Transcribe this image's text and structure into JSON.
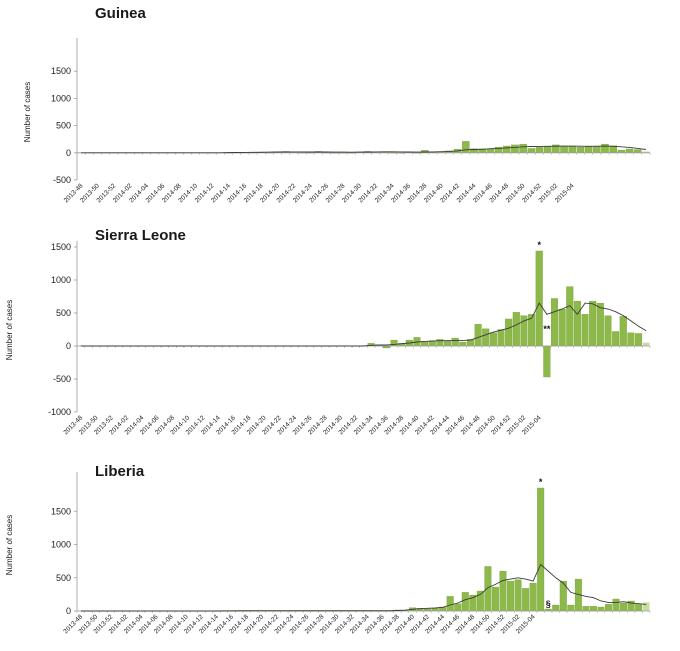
{
  "colors": {
    "bar": "#8db84a",
    "bar_stroke": "#6f9a30",
    "last_bar": "#c9dc9f",
    "trend": "#3a3a3a",
    "axis": "#9a9a9a"
  },
  "chart_data": [
    {
      "type": "bar",
      "title": "Guinea",
      "ylabel": "Number of cases",
      "ylim": [
        -500,
        2000
      ],
      "yticks": [
        -500,
        0,
        500,
        1000,
        1500
      ],
      "xtick_labels": [
        "2013-48",
        "2013-50",
        "2013-52",
        "2014-02",
        "2014-04",
        "2014-06",
        "2014-08",
        "2014-10",
        "2014-12",
        "2014-14",
        "2014-16",
        "2014-18",
        "2014-20",
        "2014-22",
        "2014-24",
        "2014-26",
        "2014-28",
        "2014-30",
        "2014-32",
        "2014-34",
        "2014-36",
        "2014-38",
        "2014-40",
        "2014-42",
        "2014-44",
        "2014-46",
        "2014-48",
        "2014-50",
        "2014-52",
        "2015-02",
        "2015-04"
      ],
      "values": [
        0,
        0,
        0,
        0,
        0,
        0,
        0,
        0,
        0,
        0,
        0,
        0,
        0,
        0,
        0,
        0,
        0,
        0,
        5,
        10,
        10,
        10,
        15,
        10,
        20,
        25,
        15,
        10,
        10,
        25,
        10,
        5,
        5,
        5,
        15,
        25,
        20,
        15,
        10,
        5,
        0,
        5,
        45,
        15,
        20,
        35,
        65,
        210,
        75,
        75,
        75,
        105,
        125,
        145,
        160,
        80,
        100,
        110,
        145,
        125,
        115,
        105,
        115,
        110,
        160,
        130,
        50,
        70,
        60,
        25
      ],
      "trend": [
        0,
        0,
        0,
        0,
        0,
        0,
        0,
        0,
        0,
        0,
        0,
        0,
        0,
        0,
        0,
        0,
        0,
        0,
        3,
        5,
        8,
        10,
        10,
        12,
        14,
        16,
        17,
        16,
        14,
        14,
        14,
        13,
        12,
        11,
        12,
        15,
        17,
        18,
        18,
        16,
        14,
        12,
        14,
        17,
        20,
        25,
        35,
        55,
        60,
        65,
        75,
        80,
        90,
        100,
        110,
        115,
        118,
        120,
        122,
        124,
        124,
        122,
        120,
        121,
        123,
        120,
        110,
        100,
        80,
        60
      ],
      "annotations": []
    },
    {
      "type": "bar",
      "title": "Sierra Leone",
      "ylabel": "Number of cases",
      "ylim": [
        -1000,
        1500
      ],
      "yticks": [
        -1000,
        -500,
        0,
        500,
        1000,
        1500
      ],
      "xtick_labels": [
        "2013-48",
        "2013-50",
        "2013-52",
        "2014-02",
        "2014-04",
        "2014-06",
        "2014-08",
        "2014-10",
        "2014-12",
        "2014-14",
        "2014-16",
        "2014-18",
        "2014-20",
        "2014-22",
        "2014-24",
        "2014-26",
        "2014-28",
        "2014-30",
        "2014-32",
        "2014-34",
        "2014-36",
        "2014-38",
        "2014-40",
        "2014-42",
        "2014-44",
        "2014-46",
        "2014-48",
        "2014-50",
        "2014-52",
        "2015-02",
        "2015-04"
      ],
      "values": [
        0,
        0,
        0,
        0,
        0,
        0,
        0,
        0,
        0,
        0,
        0,
        0,
        0,
        0,
        0,
        0,
        0,
        0,
        0,
        0,
        0,
        0,
        0,
        0,
        0,
        0,
        0,
        0,
        0,
        0,
        0,
        0,
        0,
        0,
        0,
        0,
        0,
        0,
        40,
        20,
        -30,
        90,
        40,
        90,
        130,
        60,
        80,
        100,
        80,
        120,
        60,
        100,
        330,
        260,
        200,
        250,
        410,
        510,
        460,
        480,
        1440,
        -470,
        720,
        560,
        900,
        680,
        480,
        680,
        650,
        460,
        220,
        450,
        200,
        190,
        50
      ],
      "trend": [
        0,
        0,
        0,
        0,
        0,
        0,
        0,
        0,
        0,
        0,
        0,
        0,
        0,
        0,
        0,
        0,
        0,
        0,
        0,
        0,
        0,
        0,
        0,
        0,
        0,
        0,
        0,
        0,
        0,
        0,
        0,
        0,
        0,
        0,
        0,
        0,
        0,
        0,
        10,
        15,
        15,
        25,
        35,
        45,
        60,
        70,
        75,
        80,
        80,
        85,
        85,
        90,
        130,
        170,
        210,
        240,
        270,
        320,
        380,
        420,
        650,
        480,
        520,
        560,
        610,
        480,
        650,
        640,
        580,
        560,
        520,
        460,
        380,
        300,
        230
      ],
      "annotations": [
        {
          "text": "*",
          "at_index": 60,
          "y": 1440
        },
        {
          "text": "**",
          "at_index": 61,
          "y": 0
        }
      ]
    },
    {
      "type": "bar",
      "title": "Liberia",
      "ylabel": "Number of cases",
      "ylim": [
        0,
        2000
      ],
      "yticks": [
        0,
        500,
        1000,
        1500
      ],
      "xtick_labels": [
        "2013-48",
        "2013-50",
        "2013-52",
        "2014-02",
        "2014-04",
        "2014-06",
        "2014-08",
        "2014-10",
        "2014-12",
        "2014-14",
        "2014-16",
        "2014-18",
        "2014-20",
        "2014-22",
        "2014-24",
        "2014-26",
        "2014-28",
        "2014-30",
        "2014-32",
        "2014-34",
        "2014-36",
        "2014-38",
        "2014-40",
        "2014-42",
        "2014-44",
        "2014-46",
        "2014-48",
        "2014-50",
        "2014-52",
        "2015-02",
        "2015-04"
      ],
      "values": [
        0,
        0,
        0,
        0,
        0,
        0,
        0,
        0,
        0,
        0,
        0,
        0,
        0,
        0,
        0,
        0,
        0,
        0,
        5,
        5,
        5,
        5,
        5,
        5,
        5,
        5,
        5,
        5,
        5,
        5,
        5,
        5,
        5,
        5,
        5,
        5,
        5,
        5,
        5,
        5,
        5,
        5,
        15,
        15,
        50,
        40,
        30,
        40,
        60,
        220,
        110,
        280,
        240,
        300,
        670,
        360,
        600,
        450,
        470,
        340,
        420,
        1850,
        30,
        90,
        450,
        90,
        480,
        70,
        70,
        60,
        100,
        180,
        120,
        150,
        100,
        130
      ],
      "trend": [
        0,
        0,
        0,
        0,
        0,
        0,
        0,
        0,
        0,
        0,
        0,
        0,
        0,
        0,
        0,
        0,
        0,
        0,
        2,
        3,
        3,
        4,
        4,
        4,
        4,
        4,
        4,
        4,
        4,
        4,
        4,
        4,
        4,
        4,
        4,
        4,
        4,
        4,
        4,
        4,
        4,
        5,
        8,
        12,
        25,
        35,
        40,
        45,
        55,
        90,
        120,
        170,
        200,
        250,
        350,
        400,
        460,
        480,
        500,
        480,
        450,
        700,
        600,
        500,
        420,
        280,
        250,
        220,
        200,
        150,
        130,
        130,
        140,
        120,
        110,
        100
      ],
      "annotations": [
        {
          "text": "*",
          "at_index": 61,
          "y": 1850
        },
        {
          "text": "§",
          "at_index": 62,
          "y": 0
        }
      ]
    }
  ]
}
